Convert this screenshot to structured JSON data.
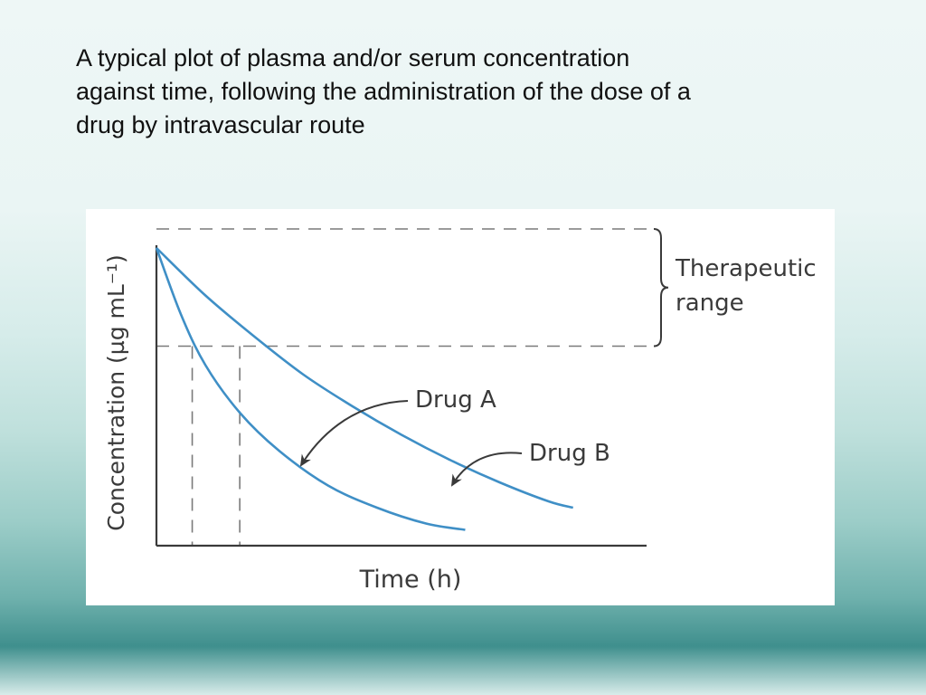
{
  "caption": {
    "lines": [
      "A typical plot of plasma and/or serum concentration",
      "against time, following the administration of the dose of a",
      "drug by intravascular route"
    ]
  },
  "chart_data": {
    "type": "line",
    "title": "",
    "xlabel": "Time (h)",
    "ylabel": "Concentration (µg mL⁻¹)",
    "xlim": [
      0,
      1
    ],
    "ylim": [
      0,
      1
    ],
    "grid": false,
    "series": [
      {
        "name": "Drug A",
        "color": "#3f8fc6",
        "x": [
          0,
          0.05,
          0.1,
          0.17,
          0.25,
          0.35,
          0.45,
          0.55,
          0.63
        ],
        "y": [
          0.94,
          0.73,
          0.57,
          0.42,
          0.3,
          0.19,
          0.12,
          0.07,
          0.05
        ]
      },
      {
        "name": "Drug B",
        "color": "#3f8fc6",
        "x": [
          0,
          0.1,
          0.2,
          0.3,
          0.4,
          0.5,
          0.6,
          0.7,
          0.8,
          0.85
        ],
        "y": [
          0.94,
          0.79,
          0.66,
          0.54,
          0.44,
          0.35,
          0.27,
          0.2,
          0.14,
          0.12
        ]
      }
    ],
    "reference_lines": {
      "therapeutic_upper": 1.0,
      "therapeutic_lower": 0.63,
      "drug_a_cross_time": 0.073,
      "drug_b_cross_time": 0.17
    },
    "annotations": {
      "range_label_line1": "Therapeutic",
      "range_label_line2": "range",
      "drug_a_label": "Drug A",
      "drug_b_label": "Drug B"
    }
  }
}
